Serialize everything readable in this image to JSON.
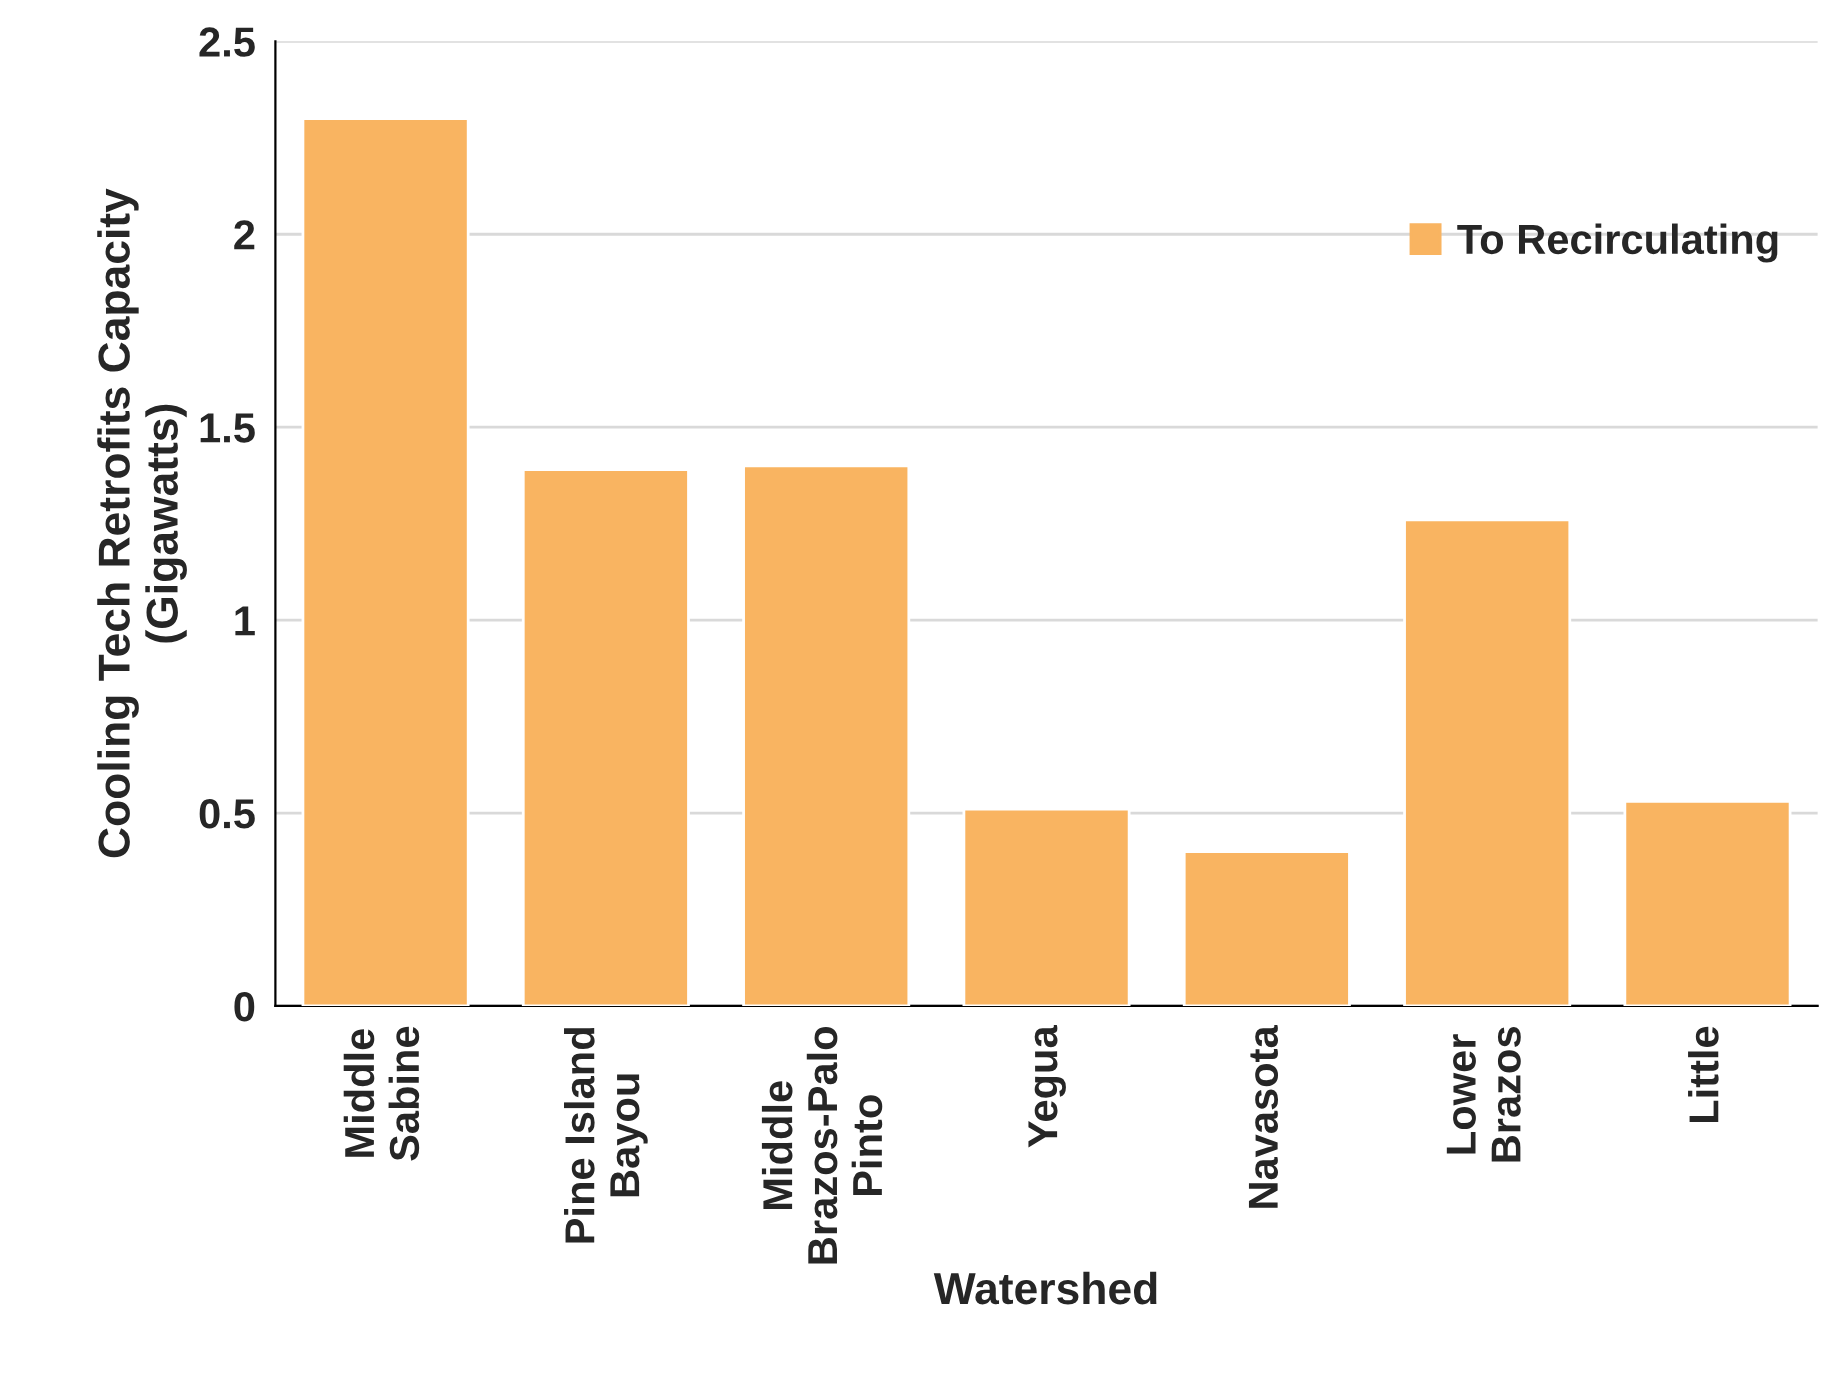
{
  "chart_data": {
    "type": "bar",
    "xlabel": "Watershed",
    "ylabel": "Cooling Tech Retrofits Capacity\n(Gigawatts)",
    "categories": [
      "Middle\nSabine",
      "Pine Island\nBayou",
      "Middle\nBrazos-Palo\nPinto",
      "Yegua",
      "Navasota",
      "Lower\nBrazos",
      "Little"
    ],
    "series": [
      {
        "name": "To Recirculating",
        "color": "#f9b461",
        "values": [
          2.3,
          1.39,
          1.4,
          0.51,
          0.4,
          1.26,
          0.53
        ]
      }
    ],
    "ylim": [
      0,
      2.5
    ],
    "yticks": [
      0,
      0.5,
      1,
      1.5,
      2,
      2.5
    ],
    "grid": "y",
    "legend": "top right"
  }
}
